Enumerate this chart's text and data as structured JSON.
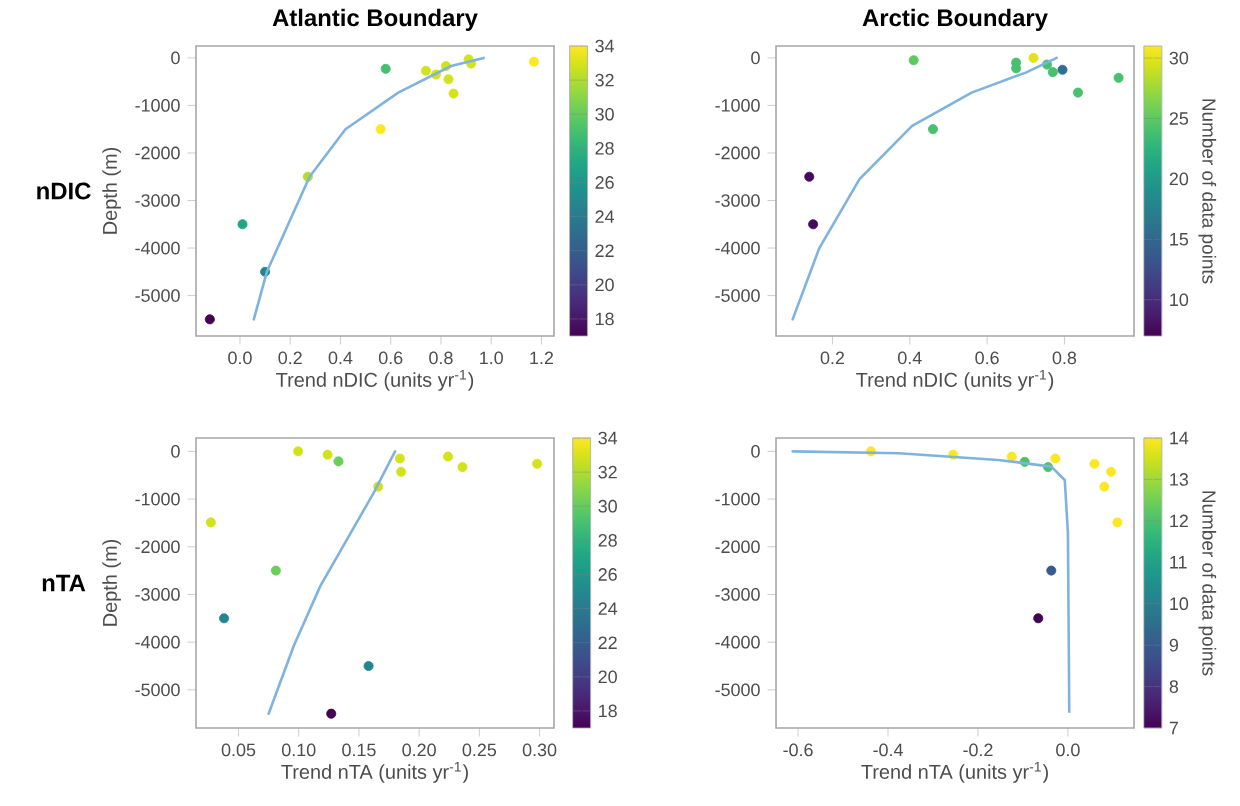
{
  "chart_data": [
    {
      "type": "scatter",
      "title": "Atlantic Boundary",
      "xlabel": "Trend nDIC (units yr$^{-1}$)",
      "ylabel": "Depth (m)",
      "annotations": [
        "nDIC"
      ],
      "xlim": [
        -0.175,
        1.25
      ],
      "ylim": [
        -5850,
        250
      ],
      "xticks": [
        {
          "value": 0,
          "label": "0.0"
        },
        0.2,
        0.4,
        0.6,
        0.8,
        {
          "value": 1,
          "label": "1.0"
        },
        1.2
      ],
      "yticks": [
        -5000,
        -4000,
        -3000,
        -2000,
        -1000,
        0
      ],
      "clim": [
        17,
        34
      ],
      "cticks": [
        18,
        20,
        22,
        24,
        26,
        28,
        30,
        32,
        34
      ],
      "series": [
        {
          "marker": "circle",
          "x": [
            0.58,
            0.74,
            0.78,
            0.82,
            0.83,
            0.85,
            0.91,
            0.92,
            1.17,
            0.56,
            0.27,
            0.01,
            0.1,
            -0.12
          ],
          "values": [
            -230,
            -270,
            -350,
            -170,
            -450,
            -750,
            -30,
            -120,
            -80,
            -1500,
            -2500,
            -3500,
            -4500,
            -5500
          ],
          "cvalues": [
            29,
            33,
            33,
            33,
            33,
            33,
            33,
            33,
            34,
            34,
            32,
            27,
            25,
            17
          ],
          "colors": [
            "#46c06f",
            "#d2e21b",
            "#d2e21b",
            "#d2e21b",
            "#d2e21b",
            "#d2e21b",
            "#d2e21b",
            "#d2e21b",
            "#fde725",
            "#fde725",
            "#b2dd2d",
            "#22a585",
            "#25858e",
            "#440154"
          ]
        },
        {
          "type": "line",
          "color": "#7fb3dd",
          "x": [
            0.055,
            0.107,
            0.277,
            0.42,
            0.63,
            0.84,
            0.97
          ],
          "values": [
            -5500,
            -4500,
            -2500,
            -1500,
            -730,
            -170,
            0
          ]
        }
      ]
    },
    {
      "type": "scatter",
      "title": "Arctic Boundary",
      "xlabel": "Trend nDIC (units yr$^{-1}$)",
      "clabel": "Number of data points",
      "xlim": [
        0.054,
        0.98
      ],
      "ylim": [
        -5850,
        250
      ],
      "xticks": [
        0.2,
        0.4,
        0.6,
        0.8
      ],
      "yticks": [
        -5000,
        -4000,
        -3000,
        -2000,
        -1000,
        0
      ],
      "clim": [
        7,
        31
      ],
      "cticks": [
        10,
        15,
        20,
        25,
        30
      ],
      "series": [
        {
          "marker": "circle",
          "x": [
            0.41,
            0.46,
            0.675,
            0.675,
            0.72,
            0.755,
            0.77,
            0.795,
            0.835,
            0.94,
            0.14,
            0.15
          ],
          "values": [
            -50,
            -1500,
            -100,
            -220,
            0,
            -140,
            -300,
            -250,
            -730,
            -420,
            -2500,
            -3500
          ],
          "cvalues": [
            25,
            24,
            24,
            24,
            30,
            24,
            24,
            16,
            24,
            24,
            8,
            8
          ],
          "colors": [
            "#5ec962",
            "#48c16e",
            "#48c16e",
            "#48c16e",
            "#e0e318",
            "#48c16e",
            "#48c16e",
            "#2c728e",
            "#48c16e",
            "#48c16e",
            "#46085c",
            "#46085c"
          ]
        },
        {
          "type": "line",
          "color": "#7fb3dd",
          "x": [
            0.097,
            0.166,
            0.27,
            0.406,
            0.56,
            0.7,
            0.78
          ],
          "values": [
            -5500,
            -4000,
            -2550,
            -1430,
            -730,
            -310,
            0
          ]
        }
      ]
    },
    {
      "type": "scatter",
      "xlabel": "Trend nTA (units yr$^{-1}$)",
      "ylabel": "Depth (m)",
      "annotations": [
        "nTA"
      ],
      "xlim": [
        0.0147,
        0.312
      ],
      "ylim": [
        -5800,
        280
      ],
      "xticks": [
        0.05,
        {
          "value": 0.1,
          "label": "0.10"
        },
        0.15,
        {
          "value": 0.2,
          "label": "0.20"
        },
        0.25,
        {
          "value": 0.3,
          "label": "0.30"
        }
      ],
      "yticks": [
        -5000,
        -4000,
        -3000,
        -2000,
        -1000,
        0
      ],
      "clim": [
        17,
        34
      ],
      "cticks": [
        18,
        20,
        22,
        24,
        26,
        28,
        30,
        32,
        34
      ],
      "series": [
        {
          "marker": "circle",
          "x": [
            0.0995,
            0.124,
            0.133,
            0.166,
            0.184,
            0.185,
            0.224,
            0.236,
            0.298,
            0.027,
            0.081,
            0.038,
            0.158,
            0.127
          ],
          "values": [
            0,
            -70,
            -210,
            -740,
            -150,
            -430,
            -110,
            -330,
            -260,
            -1490,
            -2500,
            -3500,
            -4500,
            -5500
          ],
          "cvalues": [
            33,
            33,
            30,
            33,
            33,
            33,
            33,
            33,
            33,
            33,
            30,
            25,
            25,
            17
          ],
          "colors": [
            "#d2e21b",
            "#d2e21b",
            "#6ccd5a",
            "#d2e21b",
            "#d2e21b",
            "#d2e21b",
            "#d2e21b",
            "#d2e21b",
            "#d2e21b",
            "#d2e21b",
            "#6ccd5a",
            "#25858e",
            "#25858e",
            "#440154"
          ]
        },
        {
          "type": "line",
          "color": "#7fb3dd",
          "x": [
            0.075,
            0.096,
            0.118,
            0.14,
            0.162,
            0.18
          ],
          "values": [
            -5500,
            -4070,
            -2820,
            -1850,
            -880,
            0
          ]
        }
      ]
    },
    {
      "type": "scatter",
      "xlabel": "Trend nTA (units yr$^{-1}$)",
      "clabel": "Number of data points",
      "xlim": [
        -0.649,
        0.147
      ],
      "ylim": [
        -5800,
        280
      ],
      "xticks": [
        -0.6,
        -0.4,
        -0.2,
        {
          "value": 0,
          "label": "0.0"
        }
      ],
      "yticks": [
        -5000,
        -4000,
        -3000,
        -2000,
        -1000,
        0
      ],
      "clim": [
        7,
        14
      ],
      "cticks": [
        7,
        8,
        9,
        10,
        11,
        12,
        13,
        14
      ],
      "series": [
        {
          "marker": "circle",
          "x": [
            -0.438,
            -0.255,
            -0.125,
            -0.096,
            -0.044,
            -0.028,
            0.059,
            0.096,
            0.081,
            0.11,
            -0.037,
            -0.066
          ],
          "values": [
            0,
            -70,
            -110,
            -220,
            -330,
            -150,
            -260,
            -430,
            -740,
            -1490,
            -2500,
            -3500
          ],
          "cvalues": [
            14,
            14,
            14,
            12,
            12,
            14,
            14,
            14,
            14,
            14,
            9,
            7
          ],
          "colors": [
            "#fde725",
            "#fde725",
            "#fde725",
            "#4ac16d",
            "#4ac16d",
            "#fde725",
            "#fde725",
            "#fde725",
            "#fde725",
            "#fde725",
            "#37598c",
            "#440154"
          ]
        },
        {
          "type": "line",
          "color": "#7fb3dd",
          "x": [
            -0.612,
            -0.376,
            -0.155,
            -0.037,
            -0.007,
            0.0,
            0.003
          ],
          "values": [
            0,
            -40,
            -180,
            -320,
            -600,
            -1710,
            -5460
          ]
        }
      ]
    }
  ]
}
